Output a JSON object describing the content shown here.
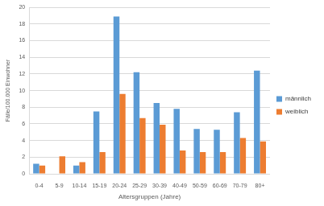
{
  "chart_data": {
    "type": "bar",
    "x_label": "Altersgruppen (Jahre)",
    "y_label": "Fälle/100.000 Einwohner",
    "categories": [
      "0-4",
      "5-9",
      "10-14",
      "15-19",
      "20-24",
      "25-29",
      "30-39",
      "40-49",
      "50-59",
      "60-69",
      "70-79",
      "80+"
    ],
    "series": [
      {
        "name": "männlich",
        "color": "#5b9bd5",
        "values": [
          1.2,
          0,
          1.0,
          7.5,
          18.9,
          12.2,
          8.5,
          7.8,
          5.4,
          5.3,
          7.4,
          12.4
        ]
      },
      {
        "name": "weiblich",
        "color": "#ed7d31",
        "values": [
          1.0,
          2.1,
          1.4,
          2.6,
          9.6,
          6.7,
          5.9,
          2.8,
          2.6,
          2.6,
          4.3,
          3.9
        ]
      }
    ],
    "ylim": [
      0,
      20
    ],
    "yticks": [
      0,
      2,
      4,
      6,
      8,
      10,
      12,
      14,
      16,
      18,
      20
    ],
    "grid": true,
    "legend": "right"
  }
}
